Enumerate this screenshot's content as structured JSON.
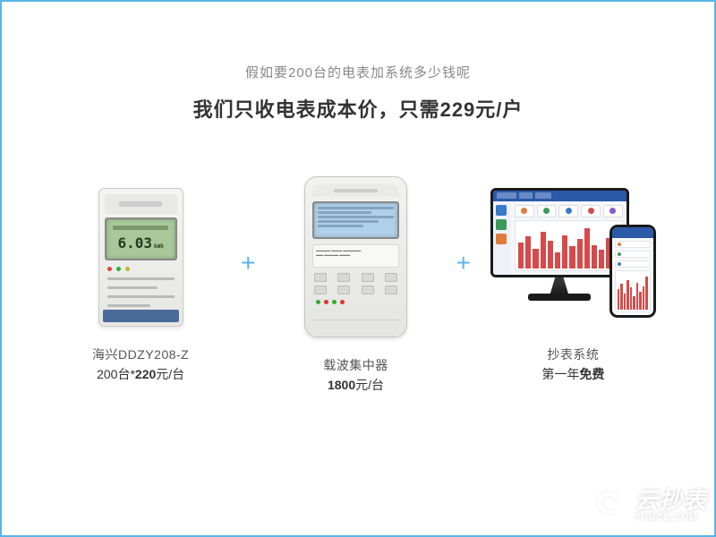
{
  "header": {
    "subtitle": "假如要200台的电表加系统多少钱呢",
    "title": "我们只收电表成本价，只需229元/户"
  },
  "plus_symbol": "+",
  "products": [
    {
      "name": "海兴DDZY208-Z",
      "price_prefix": "200台*",
      "price_bold": "220",
      "price_suffix": "元/台",
      "lcd_value": "6.03",
      "lcd_unit": "kWh",
      "lcd_bg": "#a8c89a",
      "label_bar_color": "#4a6a9a"
    },
    {
      "name": "载波集中器",
      "price_prefix": "",
      "price_bold": "1800",
      "price_suffix": "元/台",
      "lcd_bg": "#b0cfe8"
    },
    {
      "name": "抄表系统",
      "price_prefix": "第一年",
      "price_bold": "免费",
      "price_suffix": "",
      "ui_header_color": "#2a5aa8",
      "card_colors": [
        "#e07a3a",
        "#3a9a5a",
        "#3a7aca",
        "#d64a4a",
        "#8a5aca"
      ],
      "bar_color": "#d64a4a",
      "bar_heights_pct": [
        55,
        70,
        42,
        80,
        60,
        35,
        72,
        48,
        63,
        88,
        50,
        40,
        66,
        58
      ]
    }
  ],
  "watermark": {
    "cn": "云抄表",
    "en": "YUNCB.COM"
  },
  "colors": {
    "frame": "#5bb5e8",
    "plus": "#5bb5e8",
    "subtitle": "#888888",
    "title": "#333333"
  }
}
